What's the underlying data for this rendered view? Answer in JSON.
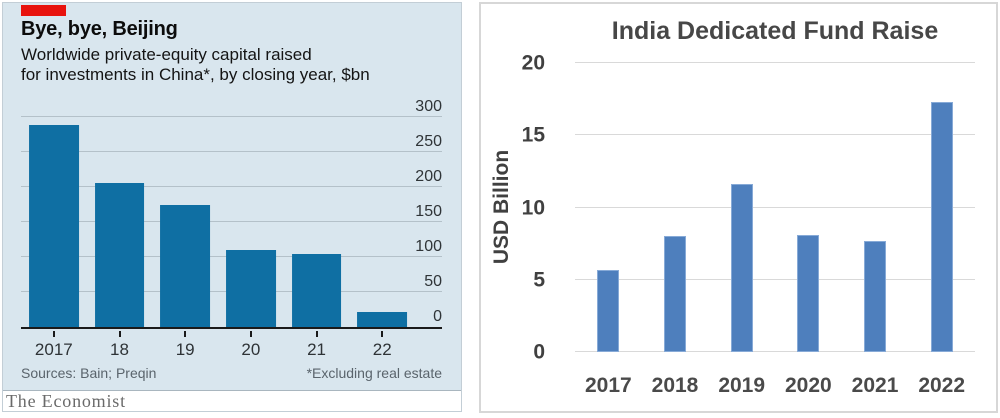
{
  "chart_data": [
    {
      "type": "bar",
      "title": "Bye, bye, Beijing",
      "subtitle1": "Worldwide private-equity capital raised",
      "subtitle2": "for investments in China*, by closing year, $bn",
      "categories": [
        "2017",
        "18",
        "19",
        "20",
        "21",
        "22"
      ],
      "values": [
        288,
        206,
        175,
        110,
        105,
        22
      ],
      "ylim": [
        0,
        300
      ],
      "yticks": [
        300,
        250,
        200,
        150,
        100,
        50,
        0
      ],
      "xlabel": "",
      "ylabel": "",
      "grid": true,
      "legend": false,
      "axis_line": true,
      "tick_label_side": "inside-right",
      "bar_color": "#0f6fa3",
      "background_color": "#d9e6ee",
      "accent_color": "#e8130d",
      "source_left": "Sources: Bain; Preqin",
      "source_right": "*Excluding real estate",
      "brand": "The Economist"
    },
    {
      "type": "bar",
      "title": "India Dedicated Fund Raise",
      "categories": [
        "2017",
        "2018",
        "2019",
        "2020",
        "2021",
        "2022"
      ],
      "values": [
        5.7,
        8.0,
        11.6,
        8.1,
        7.7,
        17.3
      ],
      "ylim": [
        0,
        20
      ],
      "yticks": [
        20,
        15,
        10,
        5,
        0
      ],
      "xlabel": "",
      "ylabel": "USD Billion",
      "grid": true,
      "legend": false,
      "axis_line": false,
      "tick_label_side": "outside-left",
      "bar_color": "#4e7fbd",
      "background_color": "#ffffff",
      "title_color": "#474747",
      "axis_text_color": "#404040"
    }
  ]
}
